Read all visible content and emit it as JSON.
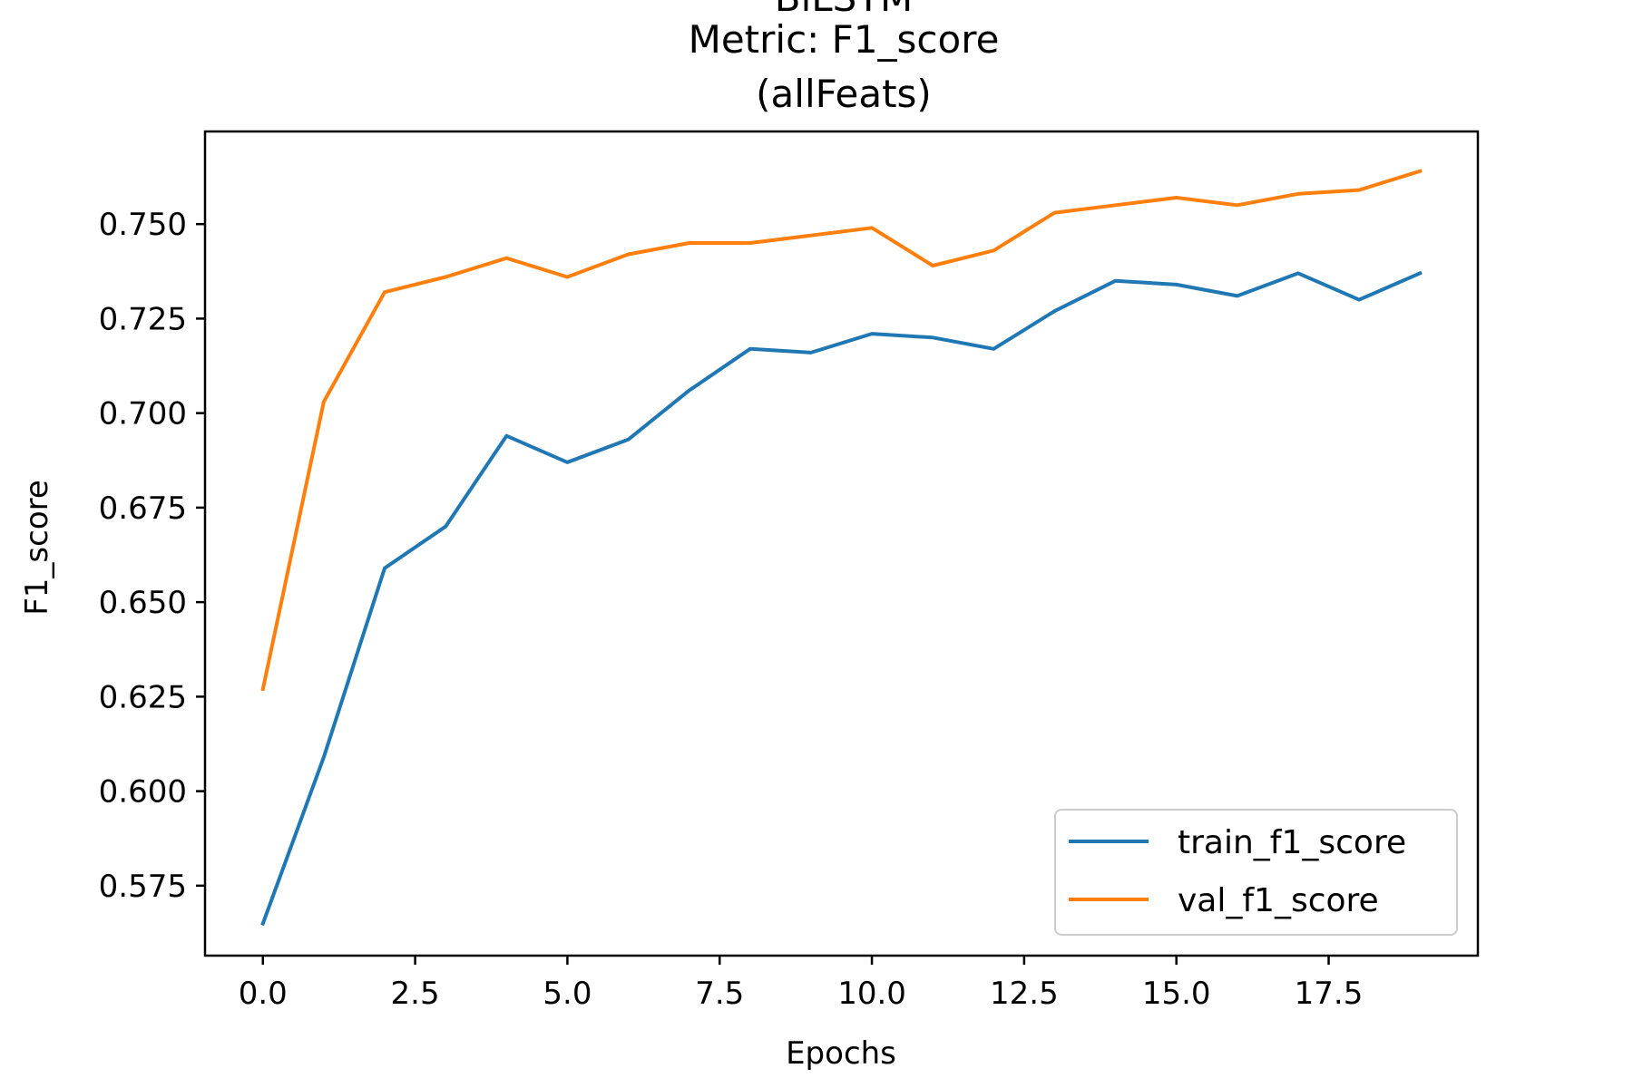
{
  "chart_data": {
    "type": "line",
    "title_lines": [
      "BiLSTM",
      "Metric: F1_score",
      "(allFeats)"
    ],
    "xlabel": "Epochs",
    "ylabel": "F1_score",
    "xlim": [
      -0.95,
      19.95
    ],
    "ylim": [
      0.5565,
      0.7745
    ],
    "xticks": [
      0.0,
      2.5,
      5.0,
      7.5,
      10.0,
      12.5,
      15.0,
      17.5
    ],
    "xtick_labels": [
      "0.0",
      "2.5",
      "5.0",
      "7.5",
      "10.0",
      "12.5",
      "15.0",
      "17.5"
    ],
    "yticks": [
      0.575,
      0.6,
      0.625,
      0.65,
      0.675,
      0.7,
      0.725,
      0.75
    ],
    "ytick_labels": [
      "0.575",
      "0.600",
      "0.625",
      "0.650",
      "0.675",
      "0.700",
      "0.725",
      "0.750"
    ],
    "grid": false,
    "legend_position": "lower-right",
    "x": [
      0,
      1,
      2,
      3,
      4,
      5,
      6,
      7,
      8,
      9,
      10,
      11,
      12,
      13,
      14,
      15,
      16,
      17,
      18,
      19
    ],
    "series": [
      {
        "name": "train_f1_score",
        "color": "#1f77b4",
        "values": [
          0.565,
          0.609,
          0.659,
          0.67,
          0.694,
          0.687,
          0.693,
          0.706,
          0.717,
          0.716,
          0.721,
          0.72,
          0.717,
          0.727,
          0.735,
          0.734,
          0.731,
          0.737,
          0.73,
          0.737
        ]
      },
      {
        "name": "val_f1_score",
        "color": "#ff7f0e",
        "values": [
          0.627,
          0.703,
          0.732,
          0.736,
          0.741,
          0.736,
          0.742,
          0.745,
          0.745,
          0.747,
          0.749,
          0.739,
          0.743,
          0.753,
          0.755,
          0.757,
          0.755,
          0.758,
          0.759,
          0.764
        ]
      }
    ]
  }
}
